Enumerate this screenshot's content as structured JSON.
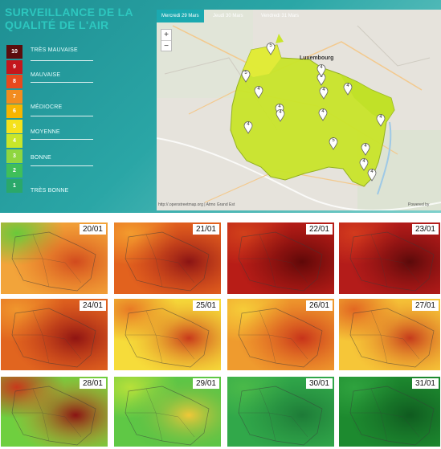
{
  "header": {
    "title": "SURVEILLANCE DE LA QUALITÉ DE L'AIR"
  },
  "legend": {
    "scale": [
      {
        "index": "10",
        "color": "#5b0d0d"
      },
      {
        "index": "9",
        "color": "#c4161c"
      },
      {
        "index": "8",
        "color": "#e8491d"
      },
      {
        "index": "7",
        "color": "#f28c1f"
      },
      {
        "index": "6",
        "color": "#f7b500"
      },
      {
        "index": "5",
        "color": "#f5e11c"
      },
      {
        "index": "4",
        "color": "#c8e62a"
      },
      {
        "index": "3",
        "color": "#8fd640"
      },
      {
        "index": "2",
        "color": "#3fbf59"
      },
      {
        "index": "1",
        "color": "#2aa86a"
      }
    ],
    "labels": {
      "tres_mauvaise": "TRÈS MAUVAISE",
      "mauvaise": "MAUVAISE",
      "mediocre": "MÉDIOCRE",
      "moyenne": "MOYENNE",
      "bonne": "BONNE",
      "tres_bonne": "TRÈS BONNE"
    }
  },
  "map": {
    "tabs": [
      "Mercredi 29 Mars",
      "Jeudi 30 Mars",
      "Vendredi 31 Mars"
    ],
    "active_tab": 0,
    "zoom_in": "+",
    "zoom_out": "−",
    "city_label": "Luxembourg",
    "markers": [
      "5",
      "5",
      "4",
      "4",
      "6",
      "4",
      "4",
      "4",
      "4",
      "4",
      "5",
      "4",
      "4",
      "4",
      "4",
      "4"
    ],
    "attribution": "http://.openstreetmap.org | Atmo Grand Est",
    "powered_by": "Powered by"
  },
  "panels": {
    "dates": [
      "20/01",
      "21/01",
      "22/01",
      "23/01",
      "24/01",
      "25/01",
      "26/01",
      "27/01",
      "28/01",
      "29/01",
      "30/01",
      "31/01"
    ],
    "palettes": [
      [
        "#f2a43a",
        "#e8711f",
        "#6ac93a",
        "#d14a1e"
      ],
      [
        "#e2621e",
        "#c5311a",
        "#f39b2e",
        "#8a1414"
      ],
      [
        "#b81d17",
        "#7c0d0d",
        "#d1401b",
        "#5f0808"
      ],
      [
        "#b41c1a",
        "#8b0f10",
        "#d23a1d",
        "#5a0a0a"
      ],
      [
        "#e1651f",
        "#c3361a",
        "#f0962d",
        "#8f1412"
      ],
      [
        "#f6dc3a",
        "#f0b42f",
        "#e87a25",
        "#c8391b"
      ],
      [
        "#ef9b2e",
        "#e3641f",
        "#f6cc38",
        "#c7331a"
      ],
      [
        "#f6c638",
        "#ee9a2c",
        "#e26722",
        "#c53a1c"
      ],
      [
        "#6fcf3f",
        "#e7a02f",
        "#c8391b",
        "#8a1313"
      ],
      [
        "#5fc845",
        "#39b34a",
        "#b7e03a",
        "#f0c838"
      ],
      [
        "#31a84a",
        "#268e3f",
        "#4ab949",
        "#1d7a37"
      ],
      [
        "#1d8a2f",
        "#176e27",
        "#2fa23e",
        "#0f5a1f"
      ]
    ]
  }
}
